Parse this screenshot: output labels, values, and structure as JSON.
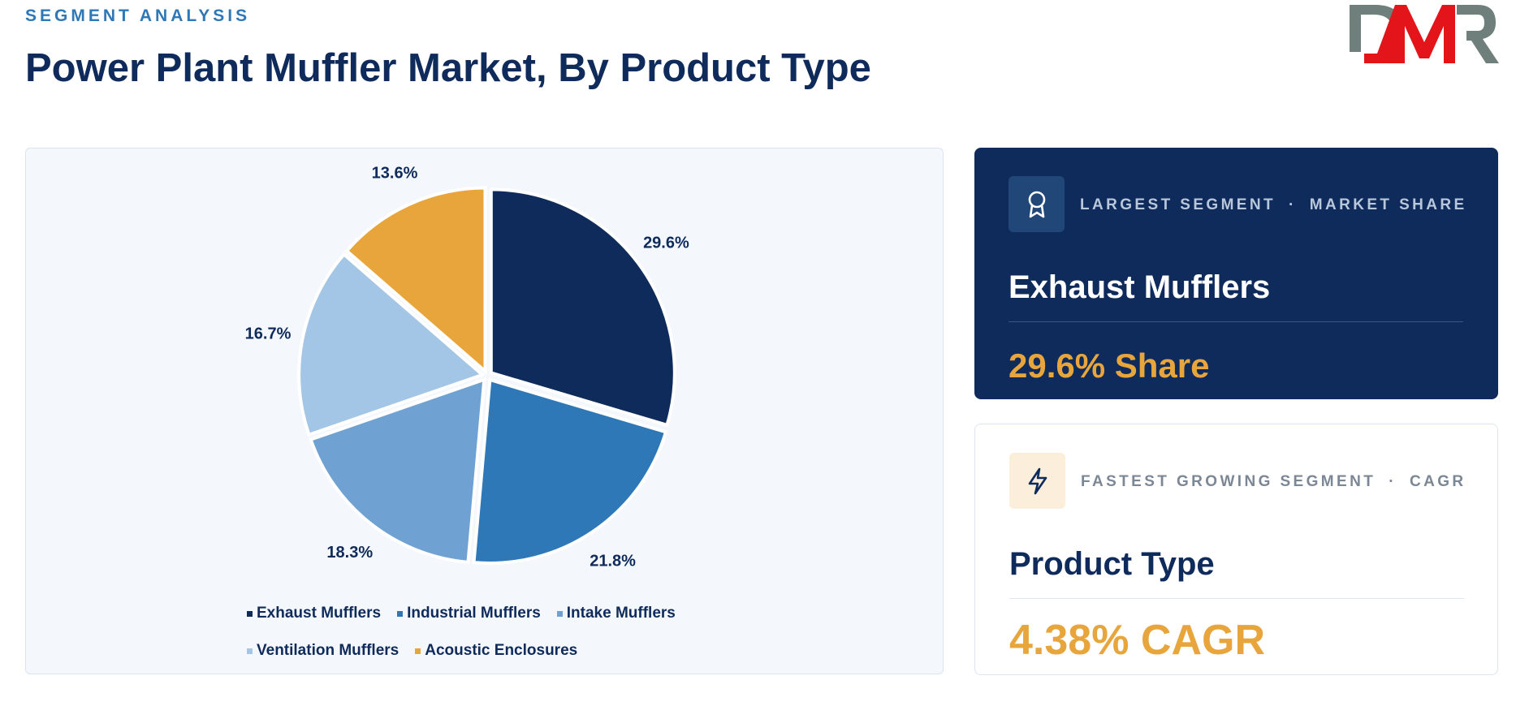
{
  "header": {
    "eyebrow": "SEGMENT ANALYSIS",
    "title": "Power Plant Muffler Market, By Product Type"
  },
  "logo": {
    "text": "DMR",
    "colors": {
      "d": "#6f7f7b",
      "m": "#e3151b",
      "r": "#6f7f7b"
    }
  },
  "chart_data": {
    "type": "pie",
    "categories": [
      "Exhaust Mufflers",
      "Industrial Mufflers",
      "Intake Mufflers",
      "Ventilation Mufflers",
      "Acoustic Enclosures"
    ],
    "values": [
      29.6,
      21.8,
      18.3,
      16.7,
      13.6
    ],
    "labels": [
      "29.6%",
      "21.8%",
      "18.3%",
      "16.7%",
      "13.6%"
    ],
    "colors": [
      "#0f2b5b",
      "#2e78b8",
      "#6fa2d3",
      "#a3c5e6",
      "#e8a53c"
    ],
    "legend_position": "bottom"
  },
  "cards": {
    "largest": {
      "label_left": "LARGEST SEGMENT",
      "label_sep": "·",
      "label_right": "MARKET SHARE",
      "icon": "award-icon",
      "name": "Exhaust Mufflers",
      "metric": "29.6% Share"
    },
    "fastest": {
      "label_left": "FASTEST GROWING SEGMENT",
      "label_sep": "·",
      "label_right": "CAGR",
      "icon": "lightning-icon",
      "name": "Product Type",
      "metric": "4.38% CAGR"
    }
  }
}
